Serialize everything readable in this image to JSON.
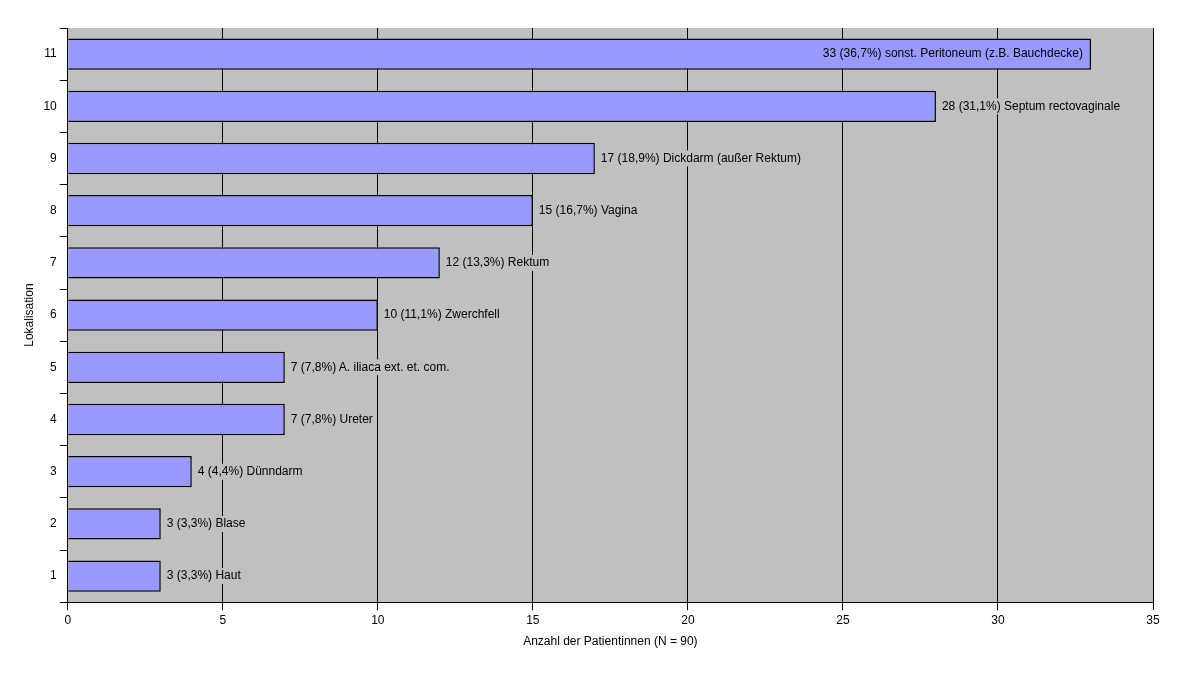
{
  "chart_data": {
    "type": "bar",
    "orientation": "horizontal",
    "xlabel": "Anzahl der Patientinnen (N = 90)",
    "ylabel": "Lokalisation",
    "categories": [
      "11",
      "10",
      "9",
      "8",
      "7",
      "6",
      "5",
      "4",
      "3",
      "2",
      "1"
    ],
    "values": [
      33,
      28,
      17,
      15,
      12,
      10,
      7,
      7,
      4,
      3,
      3
    ],
    "value_labels": [
      "33 (36,7%) sonst. Peritoneum (z.B. Bauchdecke)",
      "28 (31,1%) Septum rectovaginale",
      "17 (18,9%) Dickdarm (außer Rektum)",
      "15 (16,7%) Vagina",
      "12 (13,3%) Rektum",
      "10 (11,1%) Zwerchfell",
      "7 (7,8%) A. iliaca ext. et. com.",
      "7 (7,8%) Ureter",
      "4 (4,4%) Dünndarm",
      "3 (3,3%) Blase",
      "3 (3,3%) Haut"
    ],
    "color": "#9999ff",
    "xlim": [
      0,
      35
    ],
    "xticks": [
      0,
      5,
      10,
      15,
      20,
      25,
      30,
      35
    ],
    "grid": "x",
    "legend": false
  }
}
